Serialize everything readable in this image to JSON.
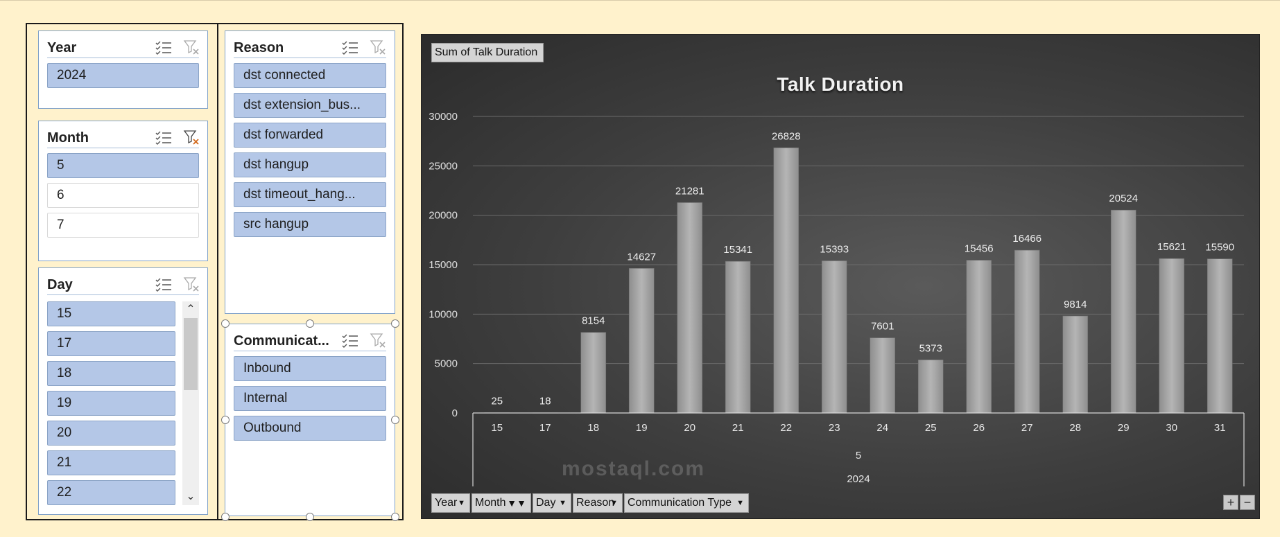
{
  "slicers": {
    "year": {
      "title": "Year",
      "items": [
        {
          "label": "2024",
          "selected": true
        }
      ]
    },
    "month": {
      "title": "Month",
      "items": [
        {
          "label": "5",
          "selected": true
        },
        {
          "label": "6",
          "selected": false
        },
        {
          "label": "7",
          "selected": false
        }
      ]
    },
    "day": {
      "title": "Day",
      "items": [
        {
          "label": "15"
        },
        {
          "label": "17"
        },
        {
          "label": "18"
        },
        {
          "label": "19"
        },
        {
          "label": "20"
        },
        {
          "label": "21"
        },
        {
          "label": "22"
        }
      ]
    },
    "reason": {
      "title": "Reason",
      "items": [
        {
          "label": "dst connected"
        },
        {
          "label": "dst extension_bus..."
        },
        {
          "label": "dst forwarded"
        },
        {
          "label": "dst hangup"
        },
        {
          "label": "dst timeout_hang..."
        },
        {
          "label": "src hangup"
        }
      ]
    },
    "communication": {
      "title": "Communicat...",
      "items": [
        {
          "label": "Inbound"
        },
        {
          "label": "Internal"
        },
        {
          "label": "Outbound"
        }
      ]
    }
  },
  "chart_panel": {
    "value_field": "Sum of Talk Duration",
    "field_buttons": [
      "Year",
      "Month",
      "Day",
      "Reason",
      "Communication Type"
    ],
    "zoom_in": "+",
    "zoom_out": "−",
    "month_label": "5",
    "year_label": "2024"
  },
  "watermark": "mostaql.com",
  "colors": {
    "selected_item": "#b4c7e7",
    "bar_fill": "#a6a6a6",
    "chart_bg": "#3e3e3e",
    "sheet_bg": "#fff2cc"
  },
  "chart_data": {
    "type": "bar",
    "title": "Talk Duration",
    "categories": [
      "15",
      "17",
      "18",
      "19",
      "20",
      "21",
      "22",
      "23",
      "24",
      "25",
      "26",
      "27",
      "28",
      "29",
      "30",
      "31"
    ],
    "values": [
      25,
      18,
      8154,
      14627,
      21281,
      15341,
      26828,
      15393,
      7601,
      5373,
      15456,
      16466,
      9814,
      20524,
      15621,
      15590
    ],
    "ylim": [
      0,
      30000
    ],
    "yticks": [
      0,
      5000,
      10000,
      15000,
      20000,
      25000,
      30000
    ],
    "grid": true,
    "data_labels": true
  }
}
